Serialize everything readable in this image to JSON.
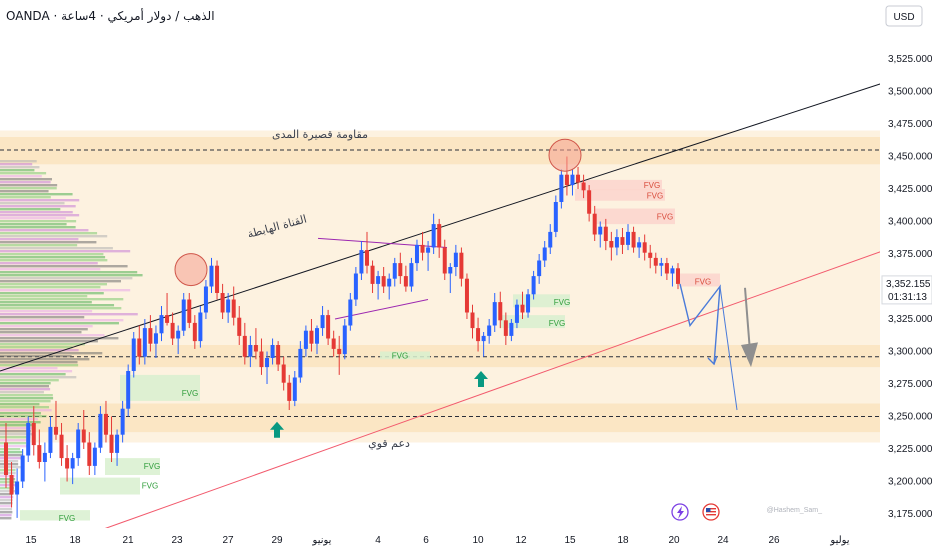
{
  "header": {
    "title": "OANDA · الذهب / دولار أمريكي · 4ساعة",
    "currency": "USD"
  },
  "watermark": "@Hashem_Sam_",
  "colors": {
    "bg": "#ffffff",
    "band_light": "#fdf2e0",
    "zone": "#fbe6c4",
    "bull": "#2962ff",
    "bear": "#e53935",
    "green_arrow": "#089981",
    "fvg_green": "#d8f0cf",
    "fvg_red": "#fbd5cc",
    "forecast": "#4a7bd9",
    "grey_arrow": "#8f8f8f",
    "upper_line": "#131722",
    "lower_line": "#f25a6d",
    "circle_fill": "#f6a08f",
    "circle_stroke": "#d0564a"
  },
  "chart_data": {
    "type": "candlestick",
    "symbol": "XAUUSD",
    "timeframe": "4h",
    "y_ticks": [
      "3,525.000",
      "3,500.000",
      "3,475.000",
      "3,450.000",
      "3,425.000",
      "3,400.000",
      "3,375.000",
      "3,350.000",
      "3,325.000",
      "3,300.000",
      "3,275.000",
      "3,250.000",
      "3,225.000",
      "3,200.000",
      "3,175.000"
    ],
    "x_ticks": [
      "15",
      "18",
      "21",
      "23",
      "27",
      "29",
      "يونيو",
      "4",
      "6",
      "10",
      "12",
      "15",
      "18",
      "20",
      "24",
      "26",
      "يوليو"
    ],
    "current_price": "3,352.155",
    "countdown": "01:31:13",
    "annotations": {
      "resistance_label": "مقاومة قصيرة المدى",
      "channel_label": "القناة الهابطة",
      "support_label": "دعم قوي"
    },
    "fvg_label": "FVG",
    "levels": {
      "resistance_zone": [
        3444,
        3465
      ],
      "mid_zone": [
        3288,
        3305
      ],
      "support_zone": [
        3238,
        3260
      ]
    },
    "candles": [
      [
        3230,
        3245,
        3195,
        3205
      ],
      [
        3205,
        3215,
        3180,
        3190
      ],
      [
        3190,
        3210,
        3172,
        3200
      ],
      [
        3200,
        3225,
        3195,
        3220
      ],
      [
        3220,
        3250,
        3215,
        3245
      ],
      [
        3245,
        3258,
        3220,
        3228
      ],
      [
        3228,
        3240,
        3210,
        3215
      ],
      [
        3215,
        3230,
        3200,
        3222
      ],
      [
        3222,
        3250,
        3218,
        3242
      ],
      [
        3242,
        3262,
        3232,
        3236
      ],
      [
        3236,
        3245,
        3212,
        3218
      ],
      [
        3218,
        3228,
        3200,
        3210
      ],
      [
        3210,
        3222,
        3198,
        3218
      ],
      [
        3218,
        3245,
        3212,
        3240
      ],
      [
        3240,
        3255,
        3225,
        3230
      ],
      [
        3230,
        3238,
        3205,
        3212
      ],
      [
        3212,
        3230,
        3205,
        3226
      ],
      [
        3226,
        3258,
        3222,
        3252
      ],
      [
        3252,
        3262,
        3230,
        3236
      ],
      [
        3236,
        3250,
        3215,
        3222
      ],
      [
        3222,
        3240,
        3212,
        3236
      ],
      [
        3236,
        3262,
        3230,
        3256
      ],
      [
        3256,
        3290,
        3250,
        3285
      ],
      [
        3285,
        3315,
        3280,
        3310
      ],
      [
        3310,
        3320,
        3290,
        3296
      ],
      [
        3296,
        3325,
        3290,
        3318
      ],
      [
        3318,
        3328,
        3300,
        3306
      ],
      [
        3306,
        3320,
        3295,
        3314
      ],
      [
        3314,
        3335,
        3308,
        3328
      ],
      [
        3328,
        3345,
        3320,
        3322
      ],
      [
        3322,
        3330,
        3305,
        3310
      ],
      [
        3310,
        3320,
        3298,
        3316
      ],
      [
        3316,
        3345,
        3312,
        3340
      ],
      [
        3340,
        3345,
        3318,
        3322
      ],
      [
        3322,
        3328,
        3302,
        3308
      ],
      [
        3308,
        3335,
        3303,
        3330
      ],
      [
        3330,
        3355,
        3325,
        3350
      ],
      [
        3350,
        3372,
        3345,
        3366
      ],
      [
        3366,
        3370,
        3340,
        3345
      ],
      [
        3345,
        3352,
        3325,
        3330
      ],
      [
        3330,
        3345,
        3322,
        3340
      ],
      [
        3340,
        3350,
        3320,
        3326
      ],
      [
        3326,
        3335,
        3305,
        3312
      ],
      [
        3312,
        3322,
        3290,
        3296
      ],
      [
        3296,
        3312,
        3288,
        3305
      ],
      [
        3305,
        3318,
        3294,
        3300
      ],
      [
        3300,
        3310,
        3282,
        3288
      ],
      [
        3288,
        3300,
        3275,
        3295
      ],
      [
        3295,
        3310,
        3290,
        3305
      ],
      [
        3305,
        3308,
        3285,
        3290
      ],
      [
        3290,
        3296,
        3270,
        3276
      ],
      [
        3276,
        3282,
        3255,
        3262
      ],
      [
        3262,
        3285,
        3258,
        3280
      ],
      [
        3280,
        3308,
        3276,
        3302
      ],
      [
        3302,
        3320,
        3296,
        3316
      ],
      [
        3316,
        3325,
        3300,
        3306
      ],
      [
        3306,
        3320,
        3298,
        3318
      ],
      [
        3318,
        3335,
        3312,
        3328
      ],
      [
        3328,
        3332,
        3305,
        3310
      ],
      [
        3310,
        3316,
        3296,
        3302
      ],
      [
        3302,
        3312,
        3282,
        3298
      ],
      [
        3298,
        3325,
        3294,
        3320
      ],
      [
        3320,
        3345,
        3316,
        3340
      ],
      [
        3340,
        3365,
        3335,
        3360
      ],
      [
        3360,
        3385,
        3355,
        3378
      ],
      [
        3378,
        3392,
        3360,
        3366
      ],
      [
        3366,
        3370,
        3345,
        3352
      ],
      [
        3352,
        3362,
        3340,
        3358
      ],
      [
        3358,
        3365,
        3345,
        3350
      ],
      [
        3350,
        3360,
        3340,
        3356
      ],
      [
        3356,
        3372,
        3350,
        3368
      ],
      [
        3368,
        3376,
        3352,
        3358
      ],
      [
        3358,
        3366,
        3346,
        3350
      ],
      [
        3350,
        3372,
        3346,
        3368
      ],
      [
        3368,
        3386,
        3362,
        3382
      ],
      [
        3382,
        3392,
        3370,
        3376
      ],
      [
        3376,
        3385,
        3362,
        3380
      ],
      [
        3380,
        3406,
        3375,
        3398
      ],
      [
        3398,
        3402,
        3372,
        3380
      ],
      [
        3380,
        3386,
        3355,
        3360
      ],
      [
        3360,
        3368,
        3345,
        3365
      ],
      [
        3365,
        3382,
        3358,
        3376
      ],
      [
        3376,
        3380,
        3350,
        3356
      ],
      [
        3356,
        3360,
        3325,
        3330
      ],
      [
        3330,
        3336,
        3310,
        3318
      ],
      [
        3318,
        3326,
        3300,
        3308
      ],
      [
        3308,
        3315,
        3296,
        3312
      ],
      [
        3312,
        3325,
        3306,
        3320
      ],
      [
        3320,
        3345,
        3315,
        3338
      ],
      [
        3338,
        3346,
        3318,
        3324
      ],
      [
        3324,
        3330,
        3305,
        3312
      ],
      [
        3312,
        3325,
        3308,
        3322
      ],
      [
        3322,
        3340,
        3318,
        3336
      ],
      [
        3336,
        3346,
        3325,
        3330
      ],
      [
        3330,
        3348,
        3326,
        3344
      ],
      [
        3344,
        3362,
        3340,
        3358
      ],
      [
        3358,
        3375,
        3352,
        3370
      ],
      [
        3370,
        3385,
        3365,
        3380
      ],
      [
        3380,
        3398,
        3375,
        3392
      ],
      [
        3392,
        3420,
        3388,
        3415
      ],
      [
        3415,
        3440,
        3410,
        3436
      ],
      [
        3436,
        3450,
        3420,
        3428
      ],
      [
        3428,
        3440,
        3420,
        3436
      ],
      [
        3436,
        3442,
        3425,
        3430
      ],
      [
        3430,
        3436,
        3418,
        3424
      ],
      [
        3424,
        3428,
        3400,
        3406
      ],
      [
        3406,
        3412,
        3385,
        3390
      ],
      [
        3390,
        3400,
        3380,
        3396
      ],
      [
        3396,
        3402,
        3378,
        3385
      ],
      [
        3385,
        3392,
        3370,
        3380
      ],
      [
        3380,
        3394,
        3374,
        3388
      ],
      [
        3388,
        3395,
        3375,
        3382
      ],
      [
        3382,
        3398,
        3378,
        3392
      ],
      [
        3392,
        3396,
        3376,
        3380
      ],
      [
        3380,
        3388,
        3372,
        3384
      ],
      [
        3384,
        3390,
        3370,
        3376
      ],
      [
        3376,
        3382,
        3364,
        3372
      ],
      [
        3372,
        3376,
        3360,
        3366
      ],
      [
        3366,
        3372,
        3358,
        3368
      ],
      [
        3368,
        3372,
        3355,
        3360
      ],
      [
        3360,
        3366,
        3350,
        3364
      ],
      [
        3364,
        3368,
        3348,
        3352
      ]
    ],
    "forecast_paths": [
      [
        [
          3352,
          0
        ],
        [
          3320,
          1
        ],
        [
          3350,
          2
        ],
        [
          3290,
          3
        ]
      ],
      [
        [
          3350,
          2
        ],
        [
          3255,
          3.3
        ]
      ]
    ]
  }
}
